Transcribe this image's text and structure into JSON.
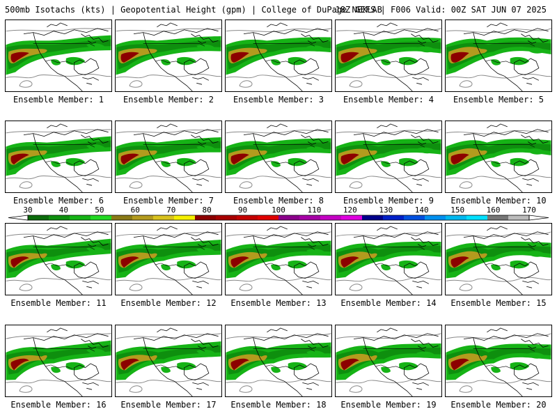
{
  "header": {
    "left": "500mb Isotachs (kts) | Geopotential Height (gpm) | College of DuPage NEXLAB",
    "right": "18Z GEFS | F006 Valid: 00Z SAT JUN 07 2025"
  },
  "panel_label_prefix": "Ensemble Member:",
  "panels": [
    {
      "member": "1"
    },
    {
      "member": "2"
    },
    {
      "member": "3"
    },
    {
      "member": "4"
    },
    {
      "member": "5"
    },
    {
      "member": "6"
    },
    {
      "member": "7"
    },
    {
      "member": "8"
    },
    {
      "member": "9"
    },
    {
      "member": "10"
    },
    {
      "member": "11"
    },
    {
      "member": "12"
    },
    {
      "member": "13"
    },
    {
      "member": "14"
    },
    {
      "member": "15"
    },
    {
      "member": "16"
    },
    {
      "member": "17"
    },
    {
      "member": "18"
    },
    {
      "member": "19"
    },
    {
      "member": "20"
    }
  ],
  "colorbar": {
    "min": 30,
    "max": 170,
    "tick_labels": [
      "30",
      "40",
      "50",
      "60",
      "70",
      "80",
      "90",
      "100",
      "110",
      "120",
      "130",
      "140",
      "150",
      "160",
      "170"
    ],
    "colors": [
      "#0b6b0b",
      "#0e8f0e",
      "#16b316",
      "#22d922",
      "#8a7a16",
      "#b39b1e",
      "#d9c21e",
      "#f5f000",
      "#8c0000",
      "#a80000",
      "#c40000",
      "#e00000",
      "#8b008b",
      "#a600a6",
      "#c400c4",
      "#e000e0",
      "#00008b",
      "#0020c8",
      "#0050e0",
      "#0090f0",
      "#00b8f0",
      "#00e0ff",
      "#777777",
      "#bbbbbb"
    ]
  },
  "map_colors": {
    "jet_outer": "#16b316",
    "jet_mid": "#0e8f0e",
    "jet_core1": "#b39b1e",
    "jet_core2": "#8c0000",
    "coast": "#000000",
    "height_contour": "#888888"
  }
}
